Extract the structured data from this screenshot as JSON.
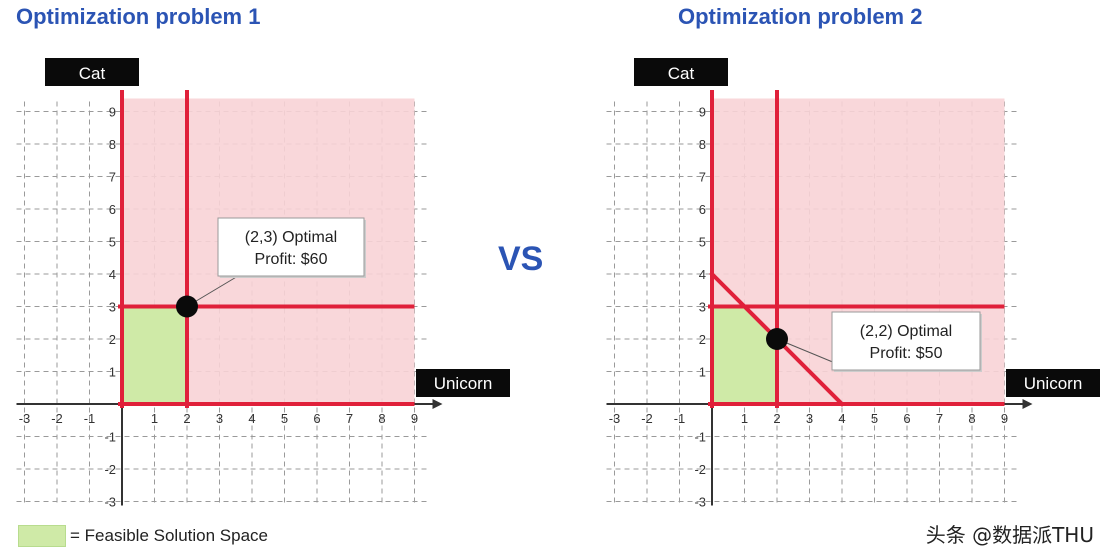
{
  "panels": [
    {
      "title": "Optimization problem 1",
      "x_axis_label": "Unicorn",
      "y_axis_label": "Cat",
      "x_ticks": [
        "-3",
        "-2",
        "-1",
        "1",
        "2",
        "3",
        "4",
        "5",
        "6",
        "7",
        "8",
        "9"
      ],
      "y_ticks": [
        "9",
        "8",
        "7",
        "6",
        "5",
        "4",
        "3",
        "2",
        "1",
        "-1",
        "-2",
        "-3"
      ],
      "callout": {
        "line1": "(2,3) Optimal",
        "line2": "Profit: $60"
      }
    },
    {
      "title": "Optimization problem 2",
      "x_axis_label": "Unicorn",
      "y_axis_label": "Cat",
      "x_ticks": [
        "-3",
        "-2",
        "-1",
        "1",
        "2",
        "3",
        "4",
        "5",
        "6",
        "7",
        "8",
        "9"
      ],
      "y_ticks": [
        "9",
        "8",
        "7",
        "6",
        "5",
        "4",
        "3",
        "2",
        "1",
        "-1",
        "-2",
        "-3"
      ],
      "callout": {
        "line1": "(2,2) Optimal",
        "line2": "Profit: $50"
      }
    }
  ],
  "vs_text": "VS",
  "legend": {
    "text": "= Feasible Solution Space"
  },
  "watermark": "头条 @数据派THU",
  "chart_data": [
    {
      "type": "line",
      "xlim": [
        -3,
        9
      ],
      "ylim": [
        -3,
        9
      ],
      "constraints": [
        {
          "kind": "vertical",
          "x": 0
        },
        {
          "kind": "horizontal",
          "y": 0
        },
        {
          "kind": "vertical",
          "x": 2
        },
        {
          "kind": "horizontal",
          "y": 3
        }
      ],
      "feasible_region": [
        [
          0,
          0
        ],
        [
          2,
          0
        ],
        [
          2,
          3
        ],
        [
          0,
          3
        ]
      ],
      "optimal_point": [
        2,
        3
      ],
      "colors": {
        "constraint": "#e0203a",
        "feasible": "#cfeaa7",
        "infeasible": "#f8d3d6"
      }
    },
    {
      "type": "line",
      "xlim": [
        -3,
        9
      ],
      "ylim": [
        -3,
        9
      ],
      "constraints": [
        {
          "kind": "vertical",
          "x": 0
        },
        {
          "kind": "horizontal",
          "y": 0
        },
        {
          "kind": "vertical",
          "x": 2
        },
        {
          "kind": "horizontal",
          "y": 3
        },
        {
          "kind": "segment",
          "from": [
            0,
            4
          ],
          "to": [
            4,
            0
          ]
        }
      ],
      "feasible_region": [
        [
          0,
          0
        ],
        [
          2,
          0
        ],
        [
          2,
          2
        ],
        [
          1,
          3
        ],
        [
          0,
          3
        ]
      ],
      "optimal_point": [
        2,
        2
      ],
      "colors": {
        "constraint": "#e0203a",
        "feasible": "#cfeaa7",
        "infeasible": "#f8d3d6"
      }
    }
  ]
}
